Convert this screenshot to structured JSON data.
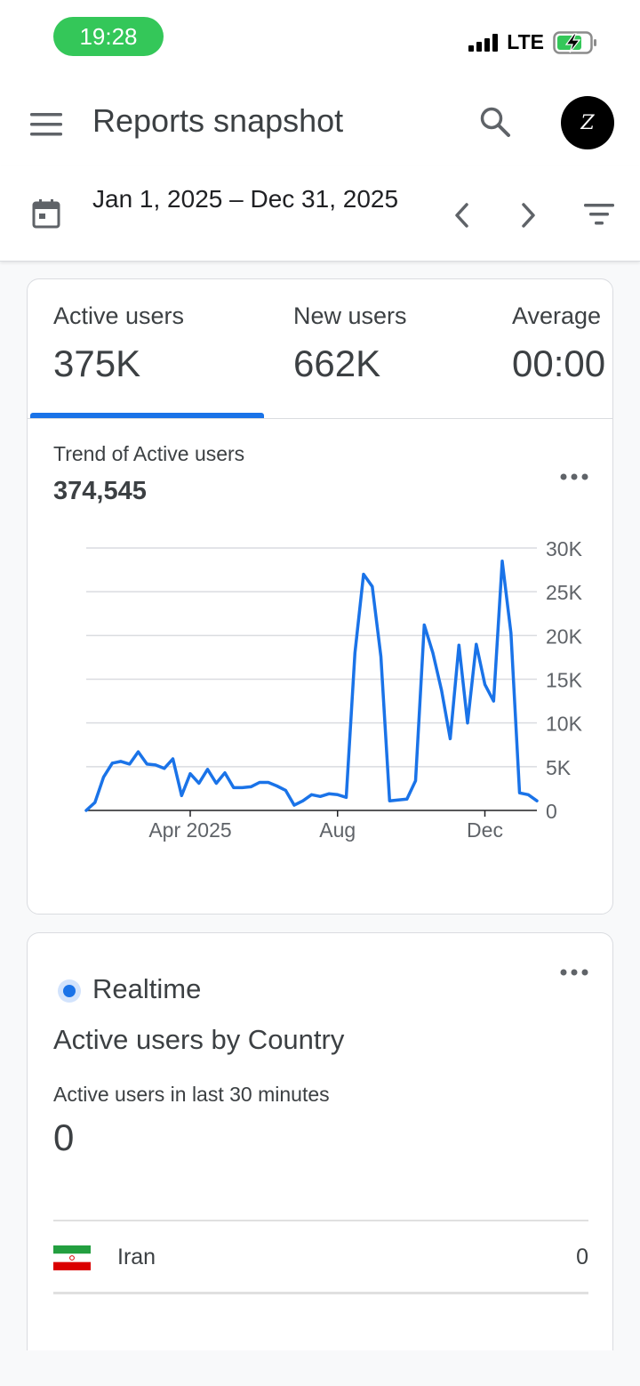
{
  "status_bar": {
    "time": "19:28",
    "network": "LTE",
    "accent": "#34c759"
  },
  "app_bar": {
    "title": "Reports snapshot",
    "avatar_letter": "Z"
  },
  "date_bar": {
    "range": "Jan 1, 2025 – Dec 31, 2025"
  },
  "metrics": [
    {
      "label": "Active users",
      "value": "375K"
    },
    {
      "label": "New users",
      "value": "662K"
    },
    {
      "label": "Average",
      "value": "00:00"
    }
  ],
  "trend": {
    "label": "Trend of Active users",
    "value": "374,545"
  },
  "chart_data": {
    "type": "line",
    "grid": true,
    "series_color": "#1a73e8",
    "ylim": [
      0,
      30000
    ],
    "y_ticks": [
      "30K",
      "25K",
      "20K",
      "15K",
      "10K",
      "5K",
      "0"
    ],
    "y_tick_values": [
      30000,
      25000,
      20000,
      15000,
      10000,
      5000,
      0
    ],
    "x_tick_labels": [
      "Apr 2025",
      "Aug",
      "Dec"
    ],
    "x_tick_weeks": [
      12,
      29,
      46
    ],
    "series": [
      {
        "values": [
          0,
          900,
          3800,
          5400,
          5600,
          5300,
          6700,
          5300,
          5200,
          4800,
          5900,
          1700,
          4200,
          3100,
          4700,
          3100,
          4300,
          2600,
          2600,
          2700,
          3200,
          3200,
          2800,
          2300,
          600,
          1100,
          1800,
          1600,
          1900,
          1800,
          1500,
          18000,
          27000,
          25600,
          17600,
          1100,
          1200,
          1300,
          3400,
          21200,
          18000,
          13700,
          8200,
          18900,
          10000,
          19000,
          14400,
          12500,
          28500,
          20300,
          2000,
          1800,
          1100
        ]
      }
    ]
  },
  "realtime": {
    "label": "Realtime",
    "title": "Active users by Country",
    "subtitle": "Active users in last 30 minutes",
    "value": "0",
    "rows": [
      {
        "country": "Iran",
        "value": "0"
      }
    ]
  }
}
